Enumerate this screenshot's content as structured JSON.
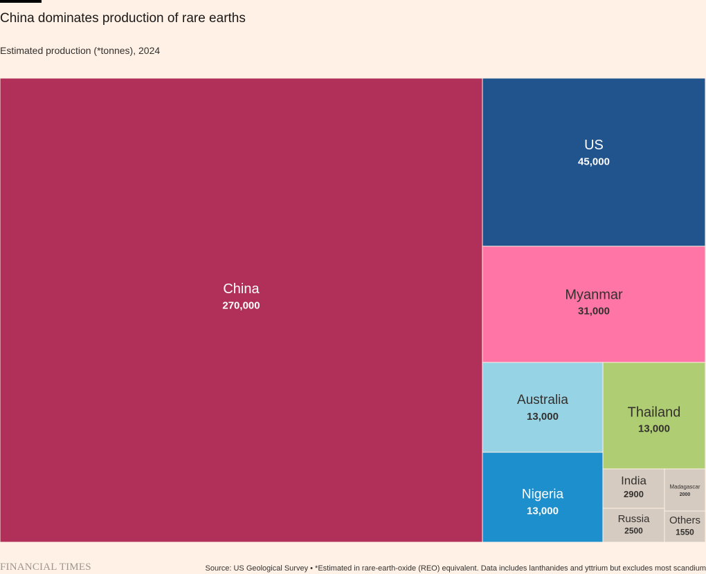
{
  "header": {
    "title": "China dominates production of rare earths",
    "subtitle": "Estimated production (*tonnes), 2024"
  },
  "footer": {
    "logo": "FINANCIAL TIMES",
    "source": "Source: US Geological Survey • *Estimated in rare-earth-oxide (REO) equivalent. Data includes lanthanides and yttrium but excludes most scandium"
  },
  "chart_data": {
    "type": "treemap",
    "title": "China dominates production of rare earths",
    "subtitle": "Estimated production (*tonnes), 2024",
    "items": [
      {
        "name": "China",
        "value": 270000,
        "value_label": "270,000",
        "color": "#b1305a"
      },
      {
        "name": "US",
        "value": 45000,
        "value_label": "45,000",
        "color": "#21538c"
      },
      {
        "name": "Myanmar",
        "value": 31000,
        "value_label": "31,000",
        "color": "#ff75a5"
      },
      {
        "name": "Australia",
        "value": 13000,
        "value_label": "13,000",
        "color": "#96d3e5"
      },
      {
        "name": "Thailand",
        "value": 13000,
        "value_label": "13,000",
        "color": "#afcd72"
      },
      {
        "name": "Nigeria",
        "value": 13000,
        "value_label": "13,000",
        "color": "#1e8fcd"
      },
      {
        "name": "India",
        "value": 2900,
        "value_label": "2900",
        "color": "#d5cbc1"
      },
      {
        "name": "Madagascar",
        "value": 2000,
        "value_label": "2000",
        "color": "#d5cbc1"
      },
      {
        "name": "Russia",
        "value": 2500,
        "value_label": "2500",
        "color": "#d5cbc1"
      },
      {
        "name": "Others",
        "value": 1550,
        "value_label": "1550",
        "color": "#d5cbc1"
      }
    ]
  }
}
